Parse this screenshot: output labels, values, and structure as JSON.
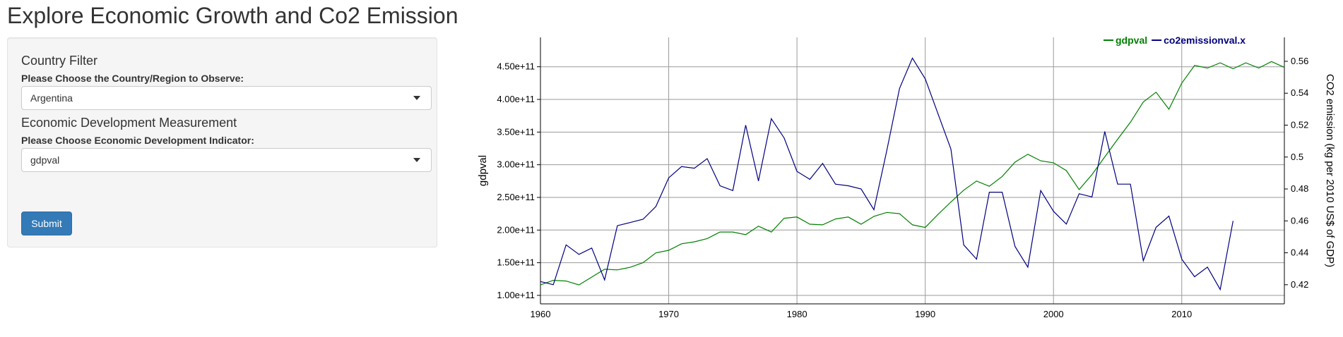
{
  "page": {
    "title": "Explore Economic Growth and Co2 Emission"
  },
  "sidebar": {
    "country_filter": {
      "heading": "Country Filter",
      "label": "Please Choose the Country/Region to Observe:",
      "selected": "Argentina",
      "caret_icon": "chevron-down-icon"
    },
    "econ_measure": {
      "heading": "Economic Development Measurement",
      "label": "Please Choose Economic Development Indicator:",
      "selected": "gdpval",
      "caret_icon": "chevron-down-icon"
    },
    "submit_label": "Submit",
    "submit_color": "#337ab7"
  },
  "chart_data": {
    "type": "line",
    "title": "",
    "xlabel": "",
    "ylabel": "gdpval",
    "y2label": "CO2 emission (kg per 2010 US$ of GDP)",
    "xlim": [
      1960,
      2018
    ],
    "ylim": [
      87000000000.0,
      495000000000.0
    ],
    "y2lim": [
      0.408,
      0.575
    ],
    "x_ticks": [
      "1960",
      "1970",
      "1980",
      "1990",
      "2000",
      "2010"
    ],
    "y_ticks": [
      "1.00e+11",
      "1.50e+11",
      "2.00e+11",
      "2.50e+11",
      "3.00e+11",
      "3.50e+11",
      "4.00e+11",
      "4.50e+11"
    ],
    "y2_ticks": [
      "0.42",
      "0.44",
      "0.46",
      "0.48",
      "0.5",
      "0.52",
      "0.54",
      "0.56"
    ],
    "grid": true,
    "legend_position": "top-right",
    "series": [
      {
        "name": "gdpval",
        "axis": "left",
        "color": "#008000",
        "x": [
          1960,
          1961,
          1962,
          1963,
          1964,
          1965,
          1966,
          1967,
          1968,
          1969,
          1970,
          1971,
          1972,
          1973,
          1974,
          1975,
          1976,
          1977,
          1978,
          1979,
          1980,
          1981,
          1982,
          1983,
          1984,
          1985,
          1986,
          1987,
          1988,
          1989,
          1990,
          1991,
          1992,
          1993,
          1994,
          1995,
          1996,
          1997,
          1998,
          1999,
          2000,
          2001,
          2002,
          2003,
          2004,
          2005,
          2006,
          2007,
          2008,
          2009,
          2010,
          2011,
          2012,
          2013,
          2014,
          2015,
          2016,
          2017,
          2018
        ],
        "values": [
          116000000000.0,
          123000000000.0,
          122000000000.0,
          116000000000.0,
          128000000000.0,
          140000000000.0,
          139000000000.0,
          143000000000.0,
          150000000000.0,
          165000000000.0,
          169000000000.0,
          179000000000.0,
          182000000000.0,
          187000000000.0,
          197000000000.0,
          197000000000.0,
          193000000000.0,
          206000000000.0,
          197000000000.0,
          218000000000.0,
          220000000000.0,
          209000000000.0,
          208000000000.0,
          217000000000.0,
          220000000000.0,
          209000000000.0,
          221000000000.0,
          227000000000.0,
          225000000000.0,
          208000000000.0,
          204000000000.0,
          224000000000.0,
          243000000000.0,
          261000000000.0,
          275000000000.0,
          267000000000.0,
          282000000000.0,
          304000000000.0,
          316000000000.0,
          306000000000.0,
          303000000000.0,
          291000000000.0,
          262000000000.0,
          285000000000.0,
          312000000000.0,
          339000000000.0,
          365000000000.0,
          396000000000.0,
          411000000000.0,
          385000000000.0,
          425000000000.0,
          452000000000.0,
          448000000000.0,
          456000000000.0,
          447000000000.0,
          456000000000.0,
          448000000000.0,
          458000000000.0,
          449000000000.0
        ]
      },
      {
        "name": "co2emissionval.x",
        "axis": "right",
        "color": "#000080",
        "x": [
          1960,
          1961,
          1962,
          1963,
          1964,
          1965,
          1966,
          1967,
          1968,
          1969,
          1970,
          1971,
          1972,
          1973,
          1974,
          1975,
          1976,
          1977,
          1978,
          1979,
          1980,
          1981,
          1982,
          1983,
          1984,
          1985,
          1986,
          1987,
          1988,
          1989,
          1990,
          1991,
          1992,
          1993,
          1994,
          1995,
          1996,
          1997,
          1998,
          1999,
          2000,
          2001,
          2002,
          2003,
          2004,
          2005,
          2006,
          2007,
          2008,
          2009,
          2010,
          2011,
          2012,
          2013,
          2014
        ],
        "values": [
          0.422,
          0.42,
          0.445,
          0.439,
          0.443,
          0.423,
          0.457,
          0.459,
          0.461,
          0.469,
          0.487,
          0.494,
          0.493,
          0.499,
          0.482,
          0.479,
          0.52,
          0.485,
          0.524,
          0.512,
          0.491,
          0.486,
          0.496,
          0.483,
          0.482,
          0.48,
          0.467,
          0.504,
          0.543,
          0.562,
          0.549,
          0.527,
          0.505,
          0.445,
          0.436,
          0.478,
          0.478,
          0.444,
          0.431,
          0.479,
          0.466,
          0.458,
          0.477,
          0.475,
          0.516,
          0.483,
          0.483,
          0.435,
          0.456,
          0.463,
          0.436,
          0.425,
          0.431,
          0.417,
          0.46
        ]
      }
    ]
  }
}
